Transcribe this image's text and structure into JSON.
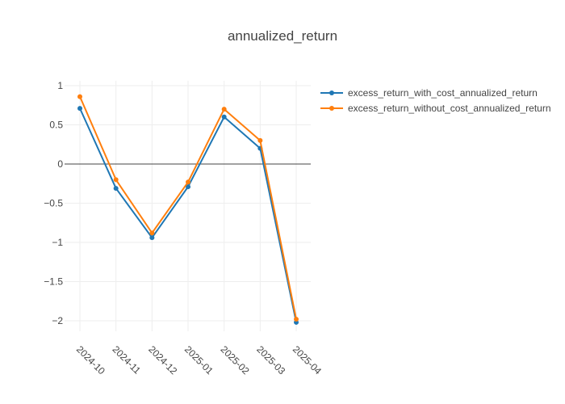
{
  "chart_data": {
    "type": "line",
    "title": "annualized_return",
    "xlabel": "",
    "ylabel": "",
    "x": [
      "2024-10",
      "2024-11",
      "2024-12",
      "2025-01",
      "2025-02",
      "2025-03",
      "2025-04"
    ],
    "y_ticks": [
      1,
      0.5,
      0,
      -0.5,
      -1,
      -1.5,
      -2
    ],
    "y_tick_labels": [
      "1",
      "0.5",
      "0",
      "−0.5",
      "−1",
      "−1.5",
      "−2"
    ],
    "ylim": [
      -2.25,
      1.08
    ],
    "grid": true,
    "zero_line": true,
    "legend_position": "top-right",
    "series": [
      {
        "name": "excess_return_with_cost_annualized_return",
        "color": "#1f77b4",
        "values": [
          0.71,
          -0.31,
          -0.94,
          -0.29,
          0.6,
          0.2,
          -2.02
        ]
      },
      {
        "name": "excess_return_without_cost_annualized_return",
        "color": "#ff7f0e",
        "values": [
          0.86,
          -0.2,
          -0.88,
          -0.23,
          0.7,
          0.3,
          -1.98
        ]
      }
    ]
  }
}
